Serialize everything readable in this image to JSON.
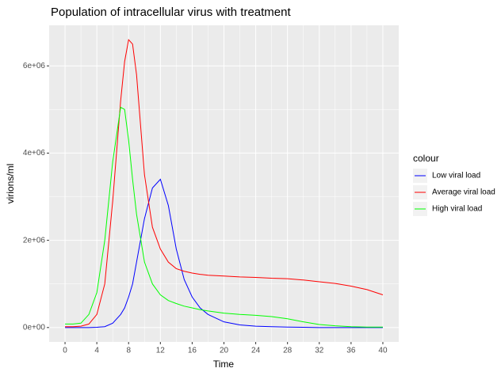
{
  "chart_data": {
    "type": "line",
    "title": "Population of intracellular virus with treatment",
    "x_label": "Time",
    "y_label": "virions/ml",
    "legend_title": "colour",
    "legend_position": "right",
    "grid": true,
    "x": [
      0,
      1,
      2,
      3,
      4,
      5,
      6,
      7,
      7.5,
      8,
      8.5,
      9,
      10,
      11,
      12,
      13,
      14,
      15,
      16,
      17,
      18,
      20,
      22,
      24,
      26,
      28,
      30,
      32,
      34,
      36,
      38,
      40
    ],
    "series": [
      {
        "name": "Low viral load",
        "color": "#0000ff",
        "values": [
          0,
          0,
          0,
          0,
          5000,
          20000,
          100000,
          300000,
          450000,
          700000,
          1000000,
          1500000,
          2500000,
          3200000,
          3400000,
          2800000,
          1800000,
          1100000,
          700000,
          450000,
          300000,
          130000,
          60000,
          30000,
          20000,
          10000,
          5000,
          0,
          0,
          0,
          0,
          0
        ]
      },
      {
        "name": "Average viral load",
        "color": "#ff0000",
        "values": [
          20000,
          20000,
          30000,
          80000,
          300000,
          1000000,
          2900000,
          5200000,
          6100000,
          6600000,
          6500000,
          5800000,
          3500000,
          2300000,
          1800000,
          1500000,
          1350000,
          1290000,
          1250000,
          1220000,
          1200000,
          1180000,
          1160000,
          1150000,
          1130000,
          1120000,
          1090000,
          1050000,
          1010000,
          950000,
          870000,
          750000
        ]
      },
      {
        "name": "High viral load",
        "color": "#00ff00",
        "values": [
          80000,
          80000,
          100000,
          300000,
          800000,
          2000000,
          3800000,
          5050000,
          5000000,
          4300000,
          3400000,
          2600000,
          1500000,
          1000000,
          750000,
          620000,
          550000,
          490000,
          450000,
          410000,
          380000,
          330000,
          300000,
          280000,
          250000,
          200000,
          130000,
          70000,
          40000,
          20000,
          10000,
          10000
        ]
      }
    ],
    "xlim": [
      -2,
      42
    ],
    "xticks": [
      0,
      4,
      8,
      12,
      16,
      20,
      24,
      28,
      32,
      36,
      40
    ],
    "ylim": [
      -330000,
      6930000
    ],
    "yticks": [
      {
        "value": 0,
        "label": "0e+00"
      },
      {
        "value": 2000000,
        "label": "2e+06"
      },
      {
        "value": 4000000,
        "label": "4e+06"
      },
      {
        "value": 6000000,
        "label": "6e+06"
      }
    ]
  }
}
